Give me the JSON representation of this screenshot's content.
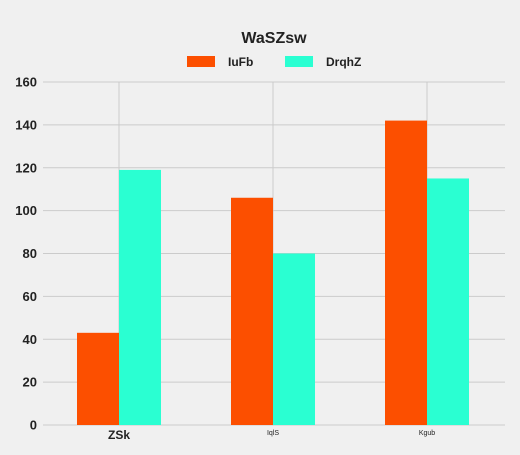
{
  "chart_data": {
    "type": "bar",
    "title": "WaSZsw",
    "categories": [
      "ZSk",
      "IqlS",
      "Kgub"
    ],
    "category_label_sizes": [
      "large",
      "small",
      "small"
    ],
    "series": [
      {
        "name": "IuFb",
        "color": "#fc4f00",
        "values": [
          43,
          106,
          142
        ]
      },
      {
        "name": "DrqhZ",
        "color": "#2affd2",
        "values": [
          119,
          80,
          115
        ]
      }
    ],
    "ylim": [
      0,
      160
    ],
    "yticks": [
      0,
      20,
      40,
      60,
      80,
      100,
      120,
      140,
      160
    ],
    "xlabel": "",
    "ylabel": "",
    "grid": true,
    "legend_position": "top"
  }
}
